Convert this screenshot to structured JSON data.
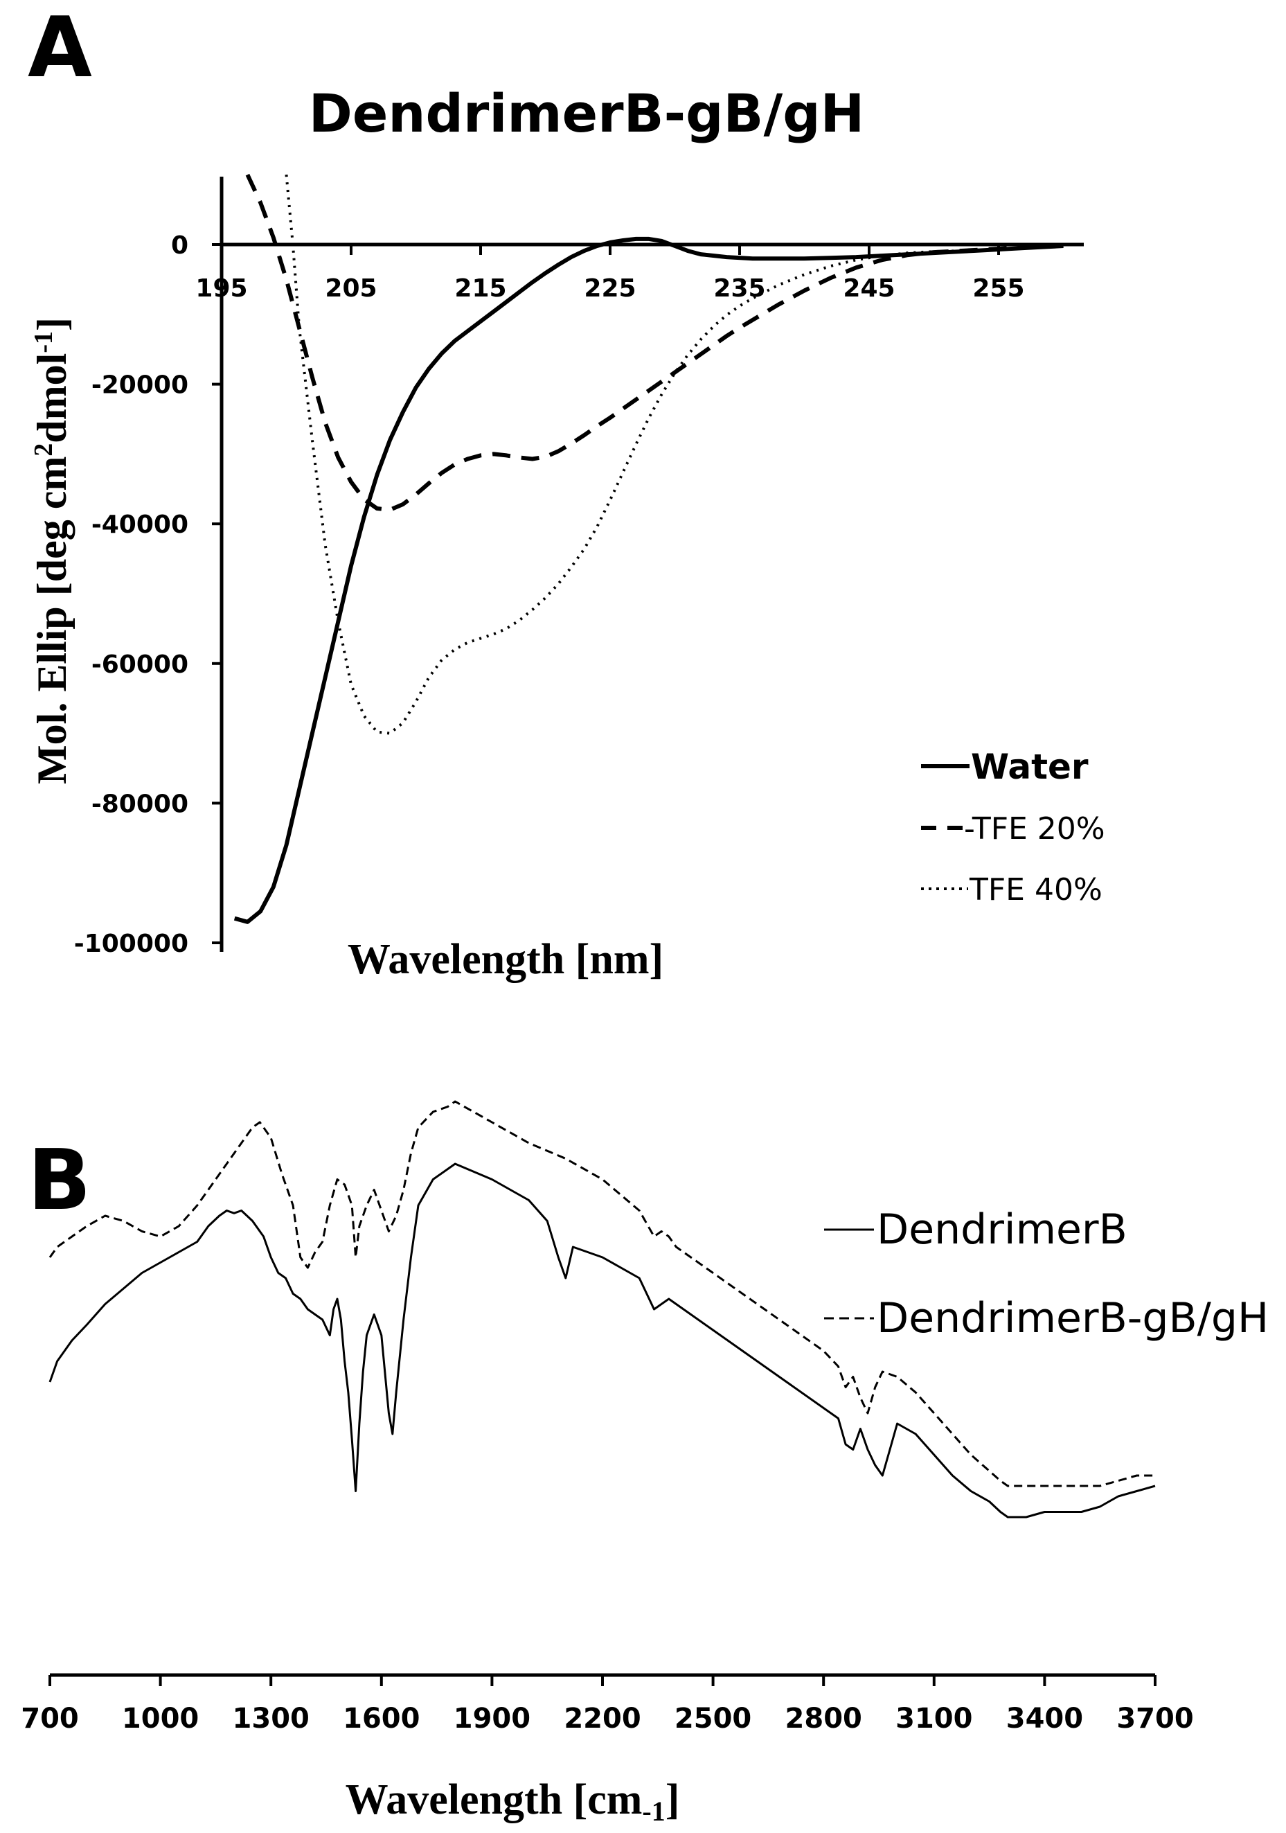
{
  "chart_data": [
    {
      "panel": "A",
      "type": "line",
      "title": "DendrimerB-gB/gH",
      "xlabel": "Wavelength [nm]",
      "ylabel": "Mol. Ellip [deg cm2dmol-1]",
      "ylabel_parts": {
        "main": "Mol. Ellip [deg cm",
        "sup1": "2",
        "mid": "dmol",
        "sup2": "-1",
        "end": "]"
      },
      "xlim": [
        195,
        260
      ],
      "ylim": [
        -100000,
        10000
      ],
      "xticks": [
        195,
        205,
        215,
        225,
        235,
        245,
        255
      ],
      "xtick_labels": [
        "195",
        "205",
        "215",
        "225",
        "235",
        "245",
        "255"
      ],
      "yticks": [
        0,
        -20000,
        -40000,
        -60000,
        -80000,
        -100000
      ],
      "ytick_labels": [
        "0",
        "-20000",
        "-40000",
        "-60000",
        "-80000",
        "-100000"
      ],
      "grid": false,
      "legend_position": "bottom-right",
      "series": [
        {
          "name": "Water",
          "legend_label": "Water",
          "style": "solid",
          "x": [
            196,
            197,
            198,
            199,
            200,
            201,
            202,
            203,
            204,
            205,
            206,
            207,
            208,
            209,
            210,
            211,
            212,
            213,
            214,
            215,
            216,
            217,
            218,
            219,
            220,
            221,
            222,
            223,
            224,
            225,
            226,
            227,
            228,
            229,
            230,
            231,
            232,
            234,
            236,
            238,
            240,
            242,
            244,
            246,
            248,
            250,
            252,
            254,
            256,
            258,
            260
          ],
          "y": [
            -96500,
            -97000,
            -95500,
            -92000,
            -86000,
            -78000,
            -70000,
            -62000,
            -54000,
            -46000,
            -39000,
            -33000,
            -28000,
            -24000,
            -20500,
            -17800,
            -15600,
            -13800,
            -12400,
            -11000,
            -9600,
            -8200,
            -6800,
            -5400,
            -4100,
            -2900,
            -1800,
            -900,
            -200,
            300,
            600,
            800,
            800,
            500,
            -200,
            -900,
            -1400,
            -1800,
            -2000,
            -2000,
            -2000,
            -1900,
            -1800,
            -1600,
            -1400,
            -1200,
            -1000,
            -800,
            -600,
            -400,
            -200
          ]
        },
        {
          "name": "TFE 20%",
          "legend_label": "-TFE 20%",
          "style": "dashed",
          "x": [
            197,
            198,
            199,
            200,
            201,
            202,
            203,
            204,
            205,
            206,
            207,
            208,
            209,
            210,
            211,
            212,
            213,
            214,
            215,
            216,
            217,
            218,
            219,
            220,
            221,
            222,
            223,
            224,
            225,
            226,
            227,
            228,
            229,
            230,
            231,
            232,
            233,
            234,
            235,
            236,
            238,
            240,
            242,
            244,
            246,
            248,
            250,
            252,
            254,
            256,
            258,
            260
          ],
          "y": [
            10000,
            6000,
            1000,
            -5000,
            -12000,
            -19000,
            -25500,
            -30500,
            -34000,
            -36500,
            -37800,
            -38000,
            -37200,
            -35800,
            -34200,
            -32700,
            -31500,
            -30700,
            -30200,
            -30000,
            -30200,
            -30500,
            -30700,
            -30400,
            -29600,
            -28500,
            -27300,
            -26000,
            -24800,
            -23500,
            -22200,
            -20900,
            -19600,
            -18300,
            -17000,
            -15700,
            -14400,
            -13100,
            -11900,
            -10800,
            -8600,
            -6600,
            -4800,
            -3300,
            -2200,
            -1500,
            -1100,
            -900,
            -700,
            -500,
            -300,
            -100
          ]
        },
        {
          "name": "TFE 40%",
          "legend_label": "TFE 40%",
          "style": "dotted",
          "x": [
            200,
            200.5,
            201,
            202,
            203,
            204,
            205,
            206,
            207,
            208,
            209,
            210,
            211,
            212,
            213,
            214,
            215,
            216,
            217,
            218,
            219,
            220,
            221,
            222,
            223,
            224,
            225,
            226,
            227,
            228,
            229,
            230,
            231,
            232,
            233,
            234,
            235,
            236,
            238,
            240,
            242,
            244,
            246,
            248,
            250,
            252,
            254,
            256,
            258,
            260
          ],
          "y": [
            10000,
            0,
            -12000,
            -28000,
            -43000,
            -54000,
            -63000,
            -67500,
            -69800,
            -70000,
            -68500,
            -65500,
            -62000,
            -59500,
            -58000,
            -57000,
            -56400,
            -55800,
            -55000,
            -53800,
            -52300,
            -50600,
            -48600,
            -46200,
            -43600,
            -40400,
            -36600,
            -32600,
            -28600,
            -24800,
            -21400,
            -18400,
            -15800,
            -13600,
            -11700,
            -10100,
            -8800,
            -7700,
            -5800,
            -4300,
            -3100,
            -2200,
            -1600,
            -1200,
            -1000,
            -900,
            -800,
            -600,
            -400,
            -200
          ]
        }
      ]
    },
    {
      "panel": "B",
      "type": "line",
      "title": "",
      "xlabel": "Wavelength [cm-1]",
      "xlabel_parts": {
        "main": "Wavelength [cm",
        "sub": "-1",
        "end": "]"
      },
      "ylabel": "",
      "xlim": [
        700,
        3700
      ],
      "ylim": [
        0,
        100
      ],
      "xticks": [
        700,
        1000,
        1300,
        1600,
        1900,
        2200,
        2500,
        2800,
        3100,
        3400,
        3700
      ],
      "xtick_labels": [
        "700",
        "1000",
        "1300",
        "1600",
        "1900",
        "2200",
        "2500",
        "2800",
        "3100",
        "3400",
        "3700"
      ],
      "grid": false,
      "legend_position": "top-right",
      "series": [
        {
          "name": "DendrimerB",
          "legend_label": "DendrimerB",
          "style": "solid",
          "x": [
            700,
            720,
            760,
            800,
            850,
            900,
            950,
            1000,
            1050,
            1100,
            1130,
            1160,
            1180,
            1200,
            1220,
            1250,
            1280,
            1300,
            1320,
            1340,
            1360,
            1380,
            1400,
            1420,
            1440,
            1460,
            1470,
            1480,
            1490,
            1500,
            1510,
            1520,
            1530,
            1540,
            1550,
            1560,
            1580,
            1600,
            1620,
            1630,
            1640,
            1660,
            1680,
            1700,
            1740,
            1780,
            1800,
            1900,
            2000,
            2050,
            2080,
            2100,
            2120,
            2200,
            2300,
            2340,
            2360,
            2380,
            2400,
            2500,
            2600,
            2700,
            2800,
            2840,
            2860,
            2880,
            2900,
            2920,
            2940,
            2960,
            2980,
            3000,
            3050,
            3100,
            3150,
            3200,
            3250,
            3280,
            3300,
            3350,
            3400,
            3450,
            3500,
            3550,
            3600,
            3650,
            3700
          ],
          "y": [
            46,
            50,
            54,
            57,
            61,
            64,
            67,
            69,
            71,
            73,
            76,
            78,
            79,
            78.5,
            79,
            77,
            74,
            70,
            67,
            66,
            63,
            62,
            60,
            59,
            58,
            55,
            60,
            62,
            58,
            50,
            44,
            35,
            25,
            38,
            48,
            55,
            59,
            55,
            40,
            36,
            44,
            58,
            70,
            80,
            85,
            87,
            88,
            85,
            81,
            77,
            70,
            66,
            72,
            70,
            66,
            60,
            61,
            62,
            61,
            56,
            51,
            46,
            41,
            39,
            34,
            33,
            37,
            33,
            30,
            28,
            33,
            38,
            36,
            32,
            28,
            25,
            23,
            21,
            20,
            20,
            21,
            21,
            21,
            22,
            24,
            25,
            26
          ]
        },
        {
          "name": "DendrimerB-gB/gH",
          "legend_label": "DendrimerB-gB/gH",
          "style": "dashed",
          "x": [
            700,
            720,
            760,
            800,
            850,
            900,
            950,
            1000,
            1050,
            1100,
            1150,
            1200,
            1250,
            1270,
            1300,
            1330,
            1360,
            1380,
            1400,
            1420,
            1440,
            1460,
            1480,
            1500,
            1520,
            1530,
            1540,
            1560,
            1580,
            1600,
            1620,
            1640,
            1660,
            1680,
            1700,
            1740,
            1780,
            1800,
            1900,
            2000,
            2100,
            2200,
            2300,
            2340,
            2360,
            2380,
            2400,
            2500,
            2600,
            2700,
            2800,
            2840,
            2860,
            2880,
            2900,
            2920,
            2940,
            2960,
            3000,
            3050,
            3100,
            3150,
            3200,
            3280,
            3300,
            3400,
            3500,
            3550,
            3600,
            3650,
            3700
          ],
          "y": [
            70,
            72,
            74,
            76,
            78,
            77,
            75,
            74,
            76,
            80,
            85,
            90,
            95,
            96,
            93,
            86,
            80,
            70,
            68,
            71,
            73,
            80,
            85,
            84,
            80,
            70,
            76,
            80,
            83,
            79,
            75,
            78,
            83,
            90,
            95,
            98,
            99,
            100,
            96,
            92,
            89,
            85,
            79,
            74,
            75,
            74,
            72,
            67,
            62,
            57,
            52,
            49,
            45,
            47,
            43,
            40,
            45,
            48,
            47,
            44,
            40,
            36,
            32,
            27,
            26,
            26,
            26,
            26,
            27,
            28,
            28
          ]
        }
      ]
    }
  ]
}
